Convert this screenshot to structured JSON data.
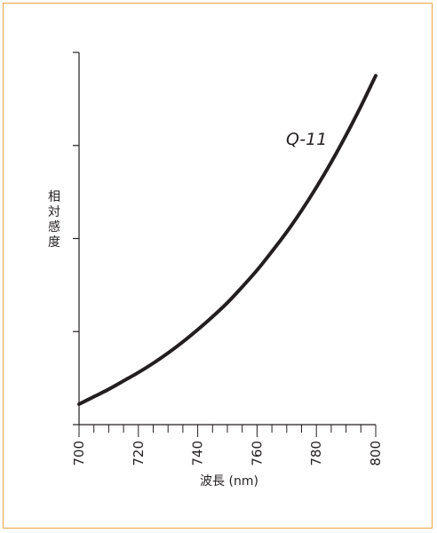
{
  "colors": {
    "frame": "#e8a548",
    "ink": "#231f20",
    "background": "#ffffff"
  },
  "chart_data": {
    "type": "line",
    "title": "",
    "xlabel": "波長 (nm)",
    "ylabel": "相対感度",
    "xlim": [
      700,
      800
    ],
    "ylim": [
      0,
      4
    ],
    "x_major_ticks": [
      700,
      720,
      740,
      760,
      780,
      800
    ],
    "x_minor_step": 5,
    "y_ticks": [
      0,
      1,
      2,
      3,
      4
    ],
    "y_tick_labels_shown": false,
    "grid": false,
    "legend": "none",
    "series": [
      {
        "name": "Q-11",
        "x": [
          700,
          705,
          710,
          715,
          720,
          725,
          730,
          735,
          740,
          745,
          750,
          755,
          760,
          765,
          770,
          775,
          780,
          785,
          790,
          795,
          800
        ],
        "y": [
          0.22,
          0.3,
          0.38,
          0.47,
          0.56,
          0.66,
          0.77,
          0.89,
          1.02,
          1.16,
          1.31,
          1.48,
          1.66,
          1.86,
          2.07,
          2.3,
          2.55,
          2.82,
          3.11,
          3.42,
          3.75
        ]
      }
    ]
  }
}
